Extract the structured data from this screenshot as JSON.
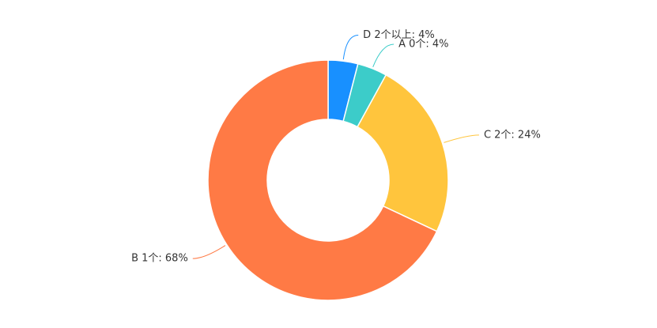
{
  "chart_data": {
    "type": "donut",
    "values": [
      4,
      4,
      24,
      68
    ],
    "value_labels": [
      "D 2个以上: 4%",
      "A 0个: 4%",
      "C 2个: 24%",
      "B 1个: 68%"
    ],
    "colors": [
      "#1890ff",
      "#3cccc9",
      "#ffc53d",
      "#ff7a45"
    ]
  }
}
